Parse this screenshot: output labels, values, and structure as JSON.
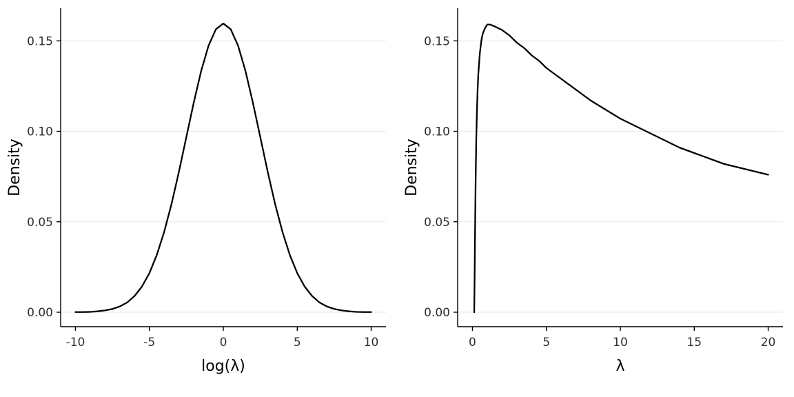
{
  "figure": {
    "background": "#ffffff",
    "curve_color": "#000000",
    "grid_color": "#ebebeb",
    "axis_color": "#000000",
    "tick_text_color": "#303030"
  },
  "chart_data": [
    {
      "type": "line",
      "title": "",
      "xlabel": "log(λ)",
      "ylabel": "Density",
      "xlim": [
        -11,
        11
      ],
      "ylim": [
        -0.008,
        0.168
      ],
      "grid": "horizontal-major",
      "legend": "none",
      "line_color": "#000000",
      "xticks": {
        "values": [
          -10,
          -5,
          0,
          5,
          10
        ],
        "labels": [
          "-10",
          "-5",
          "0",
          "5",
          "10"
        ]
      },
      "yticks": {
        "values": [
          0,
          0.05,
          0.1,
          0.15
        ],
        "labels": [
          "0.00",
          "0.05",
          "0.10",
          "0.15"
        ]
      },
      "series": [
        {
          "name": "density-of-log-lambda",
          "x": [
            -10,
            -9.5,
            -9,
            -8.5,
            -8,
            -7.5,
            -7,
            -6.5,
            -6,
            -5.5,
            -5,
            -4.5,
            -4,
            -3.5,
            -3,
            -2.5,
            -2,
            -1.5,
            -1,
            -0.5,
            0,
            0.5,
            1,
            1.5,
            2,
            2.5,
            3,
            3.5,
            4,
            4.5,
            5,
            5.5,
            6,
            6.5,
            7,
            7.5,
            8,
            8.5,
            9,
            9.5,
            10
          ],
          "y": [
            0.0001,
            0.0001,
            0.0002,
            0.0005,
            0.001,
            0.0018,
            0.0032,
            0.0054,
            0.009,
            0.0142,
            0.0216,
            0.0316,
            0.0444,
            0.0599,
            0.0777,
            0.0968,
            0.1158,
            0.1333,
            0.1473,
            0.1564,
            0.1596,
            0.1564,
            0.1473,
            0.1333,
            0.1158,
            0.0968,
            0.0777,
            0.0599,
            0.0444,
            0.0316,
            0.0216,
            0.0142,
            0.009,
            0.0054,
            0.0032,
            0.0018,
            0.001,
            0.0005,
            0.0002,
            0.0001,
            0.0001
          ]
        }
      ]
    },
    {
      "type": "line",
      "title": "",
      "xlabel": "λ",
      "ylabel": "Density",
      "xlim": [
        -1,
        21
      ],
      "ylim": [
        -0.008,
        0.168
      ],
      "grid": "horizontal-major",
      "legend": "none",
      "line_color": "#000000",
      "xticks": {
        "values": [
          0,
          5,
          10,
          15,
          20
        ],
        "labels": [
          "0",
          "5",
          "10",
          "15",
          "20"
        ]
      },
      "yticks": {
        "values": [
          0,
          0.05,
          0.1,
          0.15
        ],
        "labels": [
          "0.00",
          "0.05",
          "0.10",
          "0.15"
        ]
      },
      "series": [
        {
          "name": "density-of-lambda",
          "x": [
            0.12,
            0.15,
            0.18,
            0.22,
            0.26,
            0.3,
            0.35,
            0.4,
            0.5,
            0.6,
            0.7,
            0.85,
            1.0,
            1.2,
            1.5,
            2,
            2.5,
            3,
            3.5,
            4,
            4.5,
            5,
            6,
            7,
            8,
            9,
            10,
            11,
            12,
            13,
            14,
            15,
            16,
            17,
            18,
            19,
            20
          ],
          "y": [
            0.0,
            0.022,
            0.047,
            0.075,
            0.096,
            0.11,
            0.123,
            0.132,
            0.143,
            0.15,
            0.154,
            0.157,
            0.159,
            0.159,
            0.158,
            0.156,
            0.153,
            0.149,
            0.146,
            0.142,
            0.139,
            0.135,
            0.129,
            0.123,
            0.117,
            0.112,
            0.107,
            0.103,
            0.099,
            0.095,
            0.091,
            0.088,
            0.085,
            0.082,
            0.08,
            0.078,
            0.076
          ]
        }
      ]
    }
  ]
}
